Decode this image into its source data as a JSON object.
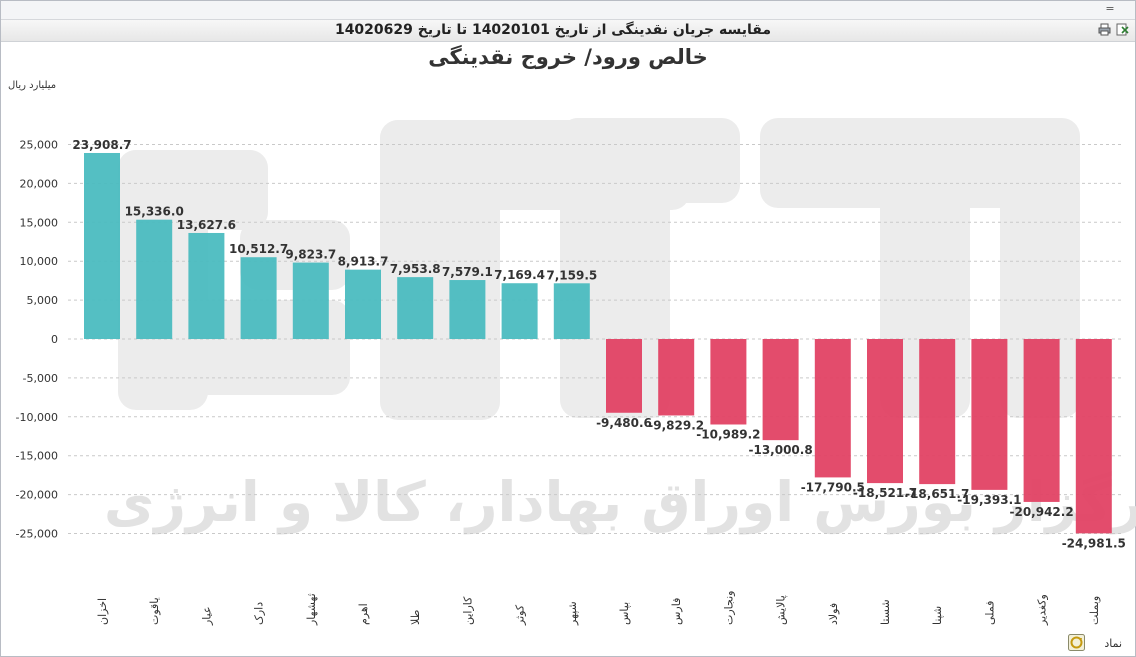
{
  "window": {
    "minimize_glyph": "=",
    "title": "مقایسه جریان نقدینگی از تاریخ 14020101 تا تاریخ 14020629",
    "icons": [
      "print-icon",
      "excel-export-icon"
    ]
  },
  "watermark": {
    "text": "کارگزار بورس اوراق بهادار، کالا و انرژی",
    "logo": "آگاه"
  },
  "colors": {
    "positive": "#4bbcc0",
    "negative": "#e14264",
    "grid": "#c9c9c9"
  },
  "chart_data": {
    "type": "bar",
    "title": "خالص ورود/ خروج نقدینگی",
    "ylabel": "میلیارد ریال",
    "xlabel": "نماد",
    "ylim": [
      -25000,
      25000
    ],
    "yticks": [
      25000,
      20000,
      15000,
      10000,
      5000,
      0,
      -5000,
      -10000,
      -15000,
      -20000,
      -25000
    ],
    "ytick_labels": [
      "25,000",
      "20,000",
      "15,000",
      "10,000",
      "5,000",
      "0",
      "-5,000",
      "-10,000",
      "-15,000",
      "-20,000",
      "-25,000"
    ],
    "grid": true,
    "categories": [
      "اخزان",
      "یاقوت",
      "عیار",
      "دارک",
      "ثهشهار",
      "اهرم",
      "طلا",
      "کاراین",
      "کوثر",
      "شپهر",
      "بپاس",
      "فارس",
      "ونجارت",
      "پالایش",
      "فولاد",
      "شستا",
      "شپنا",
      "فملی",
      "وکغدیر",
      "وبملت"
    ],
    "values": [
      23908.7,
      15336.0,
      13627.6,
      10512.7,
      9823.7,
      8913.7,
      7953.8,
      7579.1,
      7169.4,
      7159.5,
      -9480.6,
      -9829.2,
      -10989.2,
      -13000.8,
      -17790.5,
      -18521.7,
      -18651.7,
      -19393.1,
      -20942.2,
      -24981.5
    ],
    "value_labels": [
      "23,908.7",
      "15,336.0",
      "13,627.6",
      "10,512.7",
      "9,823.7",
      "8,913.7",
      "7,953.8",
      "7,579.1",
      "7,169.4",
      "7,159.5",
      "-9,480.6",
      "-9,829.2",
      "-10,989.2",
      "-13,000.8",
      "-17,790.5",
      "-18,521.7",
      "-18,651.7",
      "-19,393.1",
      "-20,942.2",
      "-24,981.5"
    ]
  }
}
